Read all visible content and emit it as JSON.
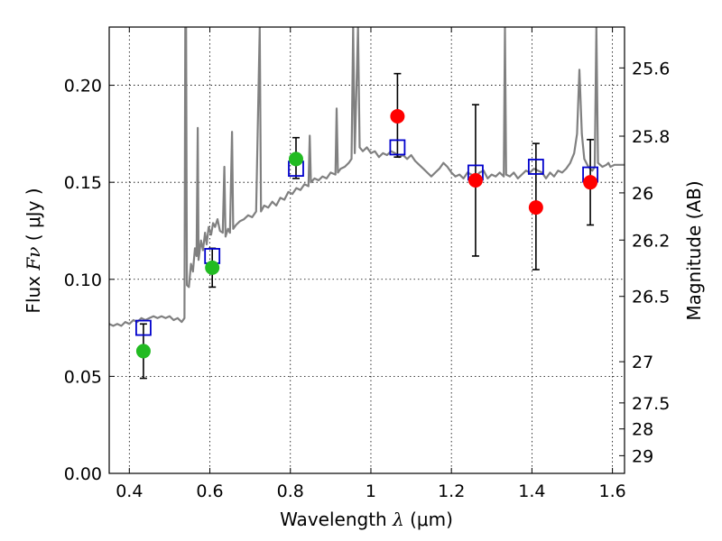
{
  "chart_data": {
    "type": "scatter",
    "xlabel_text": "Wavelength",
    "xlabel_symbol": "λ",
    "xlabel_unit": "(μm)",
    "ylabel_text": "Flux",
    "ylabel_symbol": "Fν",
    "ylabel_unit": "( μJy )",
    "y2label": "Magnitude (AB)",
    "xlim": [
      0.35,
      1.63
    ],
    "ylim": [
      0.0,
      0.23
    ],
    "grid": true,
    "x_ticks": [
      {
        "value": 0.4,
        "label": "0.4"
      },
      {
        "value": 0.6,
        "label": "0.6"
      },
      {
        "value": 0.8,
        "label": "0.8"
      },
      {
        "value": 1.0,
        "label": "1"
      },
      {
        "value": 1.2,
        "label": "1.2"
      },
      {
        "value": 1.4,
        "label": "1.4"
      },
      {
        "value": 1.6,
        "label": "1.6"
      }
    ],
    "y_ticks": [
      {
        "value": 0.0,
        "label": "0.00"
      },
      {
        "value": 0.05,
        "label": "0.05"
      },
      {
        "value": 0.1,
        "label": "0.10"
      },
      {
        "value": 0.15,
        "label": "0.15"
      },
      {
        "value": 0.2,
        "label": "0.20"
      }
    ],
    "y2_ticks": [
      {
        "label": "25.6"
      },
      {
        "label": "25.8"
      },
      {
        "label": "26"
      },
      {
        "label": "26.2"
      },
      {
        "label": "26.5"
      },
      {
        "label": "27"
      },
      {
        "label": "27.5"
      },
      {
        "label": "28"
      },
      {
        "label": "29"
      }
    ],
    "series": [
      {
        "marker": "circle",
        "color": "#22bb22",
        "points": [
          {
            "x": 0.435,
            "y": 0.063,
            "err": [
              0.049,
              0.077
            ]
          },
          {
            "x": 0.606,
            "y": 0.106,
            "err": [
              0.096,
              0.116
            ]
          },
          {
            "x": 0.814,
            "y": 0.162,
            "err": [
              0.152,
              0.173
            ]
          }
        ]
      },
      {
        "marker": "circle",
        "color": "#ff0000",
        "points": [
          {
            "x": 1.066,
            "y": 0.184,
            "err": [
              0.163,
              0.206
            ]
          },
          {
            "x": 1.26,
            "y": 0.151,
            "err": [
              0.112,
              0.19
            ]
          },
          {
            "x": 1.41,
            "y": 0.137,
            "err": [
              0.105,
              0.17
            ]
          },
          {
            "x": 1.545,
            "y": 0.15,
            "err": [
              0.128,
              0.172
            ]
          }
        ]
      },
      {
        "marker": "square-open",
        "color": "#0000cc",
        "points": [
          {
            "x": 0.435,
            "y": 0.075
          },
          {
            "x": 0.606,
            "y": 0.112
          },
          {
            "x": 0.814,
            "y": 0.157
          },
          {
            "x": 1.066,
            "y": 0.168
          },
          {
            "x": 1.26,
            "y": 0.155
          },
          {
            "x": 1.41,
            "y": 0.158
          },
          {
            "x": 1.545,
            "y": 0.154
          }
        ]
      },
      {
        "marker": "line",
        "color": "#808080",
        "points": [
          {
            "x": 0.35,
            "y": 0.077
          },
          {
            "x": 0.36,
            "y": 0.076
          },
          {
            "x": 0.37,
            "y": 0.077
          },
          {
            "x": 0.38,
            "y": 0.076
          },
          {
            "x": 0.39,
            "y": 0.078
          },
          {
            "x": 0.4,
            "y": 0.077
          },
          {
            "x": 0.41,
            "y": 0.079
          },
          {
            "x": 0.42,
            "y": 0.078
          },
          {
            "x": 0.43,
            "y": 0.08
          },
          {
            "x": 0.44,
            "y": 0.079
          },
          {
            "x": 0.45,
            "y": 0.08
          },
          {
            "x": 0.46,
            "y": 0.081
          },
          {
            "x": 0.47,
            "y": 0.08
          },
          {
            "x": 0.48,
            "y": 0.081
          },
          {
            "x": 0.49,
            "y": 0.08
          },
          {
            "x": 0.5,
            "y": 0.081
          },
          {
            "x": 0.51,
            "y": 0.079
          },
          {
            "x": 0.52,
            "y": 0.08
          },
          {
            "x": 0.53,
            "y": 0.078
          },
          {
            "x": 0.537,
            "y": 0.08
          },
          {
            "x": 0.539,
            "y": 0.23
          },
          {
            "x": 0.541,
            "y": 0.23
          },
          {
            "x": 0.543,
            "y": 0.097
          },
          {
            "x": 0.548,
            "y": 0.096
          },
          {
            "x": 0.553,
            "y": 0.108
          },
          {
            "x": 0.558,
            "y": 0.104
          },
          {
            "x": 0.563,
            "y": 0.116
          },
          {
            "x": 0.567,
            "y": 0.112
          },
          {
            "x": 0.57,
            "y": 0.178
          },
          {
            "x": 0.572,
            "y": 0.11
          },
          {
            "x": 0.578,
            "y": 0.12
          },
          {
            "x": 0.583,
            "y": 0.115
          },
          {
            "x": 0.588,
            "y": 0.124
          },
          {
            "x": 0.592,
            "y": 0.118
          },
          {
            "x": 0.597,
            "y": 0.127
          },
          {
            "x": 0.603,
            "y": 0.123
          },
          {
            "x": 0.608,
            "y": 0.129
          },
          {
            "x": 0.613,
            "y": 0.127
          },
          {
            "x": 0.619,
            "y": 0.131
          },
          {
            "x": 0.625,
            "y": 0.125
          },
          {
            "x": 0.632,
            "y": 0.124
          },
          {
            "x": 0.636,
            "y": 0.158
          },
          {
            "x": 0.639,
            "y": 0.122
          },
          {
            "x": 0.645,
            "y": 0.126
          },
          {
            "x": 0.65,
            "y": 0.124
          },
          {
            "x": 0.655,
            "y": 0.176
          },
          {
            "x": 0.658,
            "y": 0.126
          },
          {
            "x": 0.665,
            "y": 0.128
          },
          {
            "x": 0.675,
            "y": 0.13
          },
          {
            "x": 0.685,
            "y": 0.131
          },
          {
            "x": 0.695,
            "y": 0.133
          },
          {
            "x": 0.705,
            "y": 0.132
          },
          {
            "x": 0.715,
            "y": 0.135
          },
          {
            "x": 0.724,
            "y": 0.23
          },
          {
            "x": 0.727,
            "y": 0.135
          },
          {
            "x": 0.735,
            "y": 0.138
          },
          {
            "x": 0.745,
            "y": 0.137
          },
          {
            "x": 0.755,
            "y": 0.14
          },
          {
            "x": 0.765,
            "y": 0.138
          },
          {
            "x": 0.775,
            "y": 0.142
          },
          {
            "x": 0.785,
            "y": 0.141
          },
          {
            "x": 0.795,
            "y": 0.145
          },
          {
            "x": 0.805,
            "y": 0.144
          },
          {
            "x": 0.815,
            "y": 0.147
          },
          {
            "x": 0.825,
            "y": 0.146
          },
          {
            "x": 0.835,
            "y": 0.149
          },
          {
            "x": 0.845,
            "y": 0.148
          },
          {
            "x": 0.848,
            "y": 0.174
          },
          {
            "x": 0.851,
            "y": 0.15
          },
          {
            "x": 0.86,
            "y": 0.152
          },
          {
            "x": 0.87,
            "y": 0.151
          },
          {
            "x": 0.88,
            "y": 0.153
          },
          {
            "x": 0.89,
            "y": 0.152
          },
          {
            "x": 0.9,
            "y": 0.155
          },
          {
            "x": 0.912,
            "y": 0.154
          },
          {
            "x": 0.915,
            "y": 0.188
          },
          {
            "x": 0.918,
            "y": 0.155
          },
          {
            "x": 0.925,
            "y": 0.157
          },
          {
            "x": 0.935,
            "y": 0.158
          },
          {
            "x": 0.945,
            "y": 0.16
          },
          {
            "x": 0.952,
            "y": 0.162
          },
          {
            "x": 0.956,
            "y": 0.23
          },
          {
            "x": 0.96,
            "y": 0.165
          },
          {
            "x": 0.968,
            "y": 0.23
          },
          {
            "x": 0.972,
            "y": 0.168
          },
          {
            "x": 0.98,
            "y": 0.166
          },
          {
            "x": 0.99,
            "y": 0.168
          },
          {
            "x": 1.0,
            "y": 0.165
          },
          {
            "x": 1.01,
            "y": 0.166
          },
          {
            "x": 1.02,
            "y": 0.163
          },
          {
            "x": 1.03,
            "y": 0.165
          },
          {
            "x": 1.04,
            "y": 0.164
          },
          {
            "x": 1.05,
            "y": 0.166
          },
          {
            "x": 1.06,
            "y": 0.165
          },
          {
            "x": 1.07,
            "y": 0.163
          },
          {
            "x": 1.08,
            "y": 0.164
          },
          {
            "x": 1.09,
            "y": 0.162
          },
          {
            "x": 1.1,
            "y": 0.164
          },
          {
            "x": 1.11,
            "y": 0.161
          },
          {
            "x": 1.12,
            "y": 0.159
          },
          {
            "x": 1.13,
            "y": 0.157
          },
          {
            "x": 1.14,
            "y": 0.155
          },
          {
            "x": 1.15,
            "y": 0.153
          },
          {
            "x": 1.16,
            "y": 0.155
          },
          {
            "x": 1.17,
            "y": 0.157
          },
          {
            "x": 1.18,
            "y": 0.16
          },
          {
            "x": 1.19,
            "y": 0.158
          },
          {
            "x": 1.2,
            "y": 0.155
          },
          {
            "x": 1.21,
            "y": 0.153
          },
          {
            "x": 1.22,
            "y": 0.154
          },
          {
            "x": 1.23,
            "y": 0.152
          },
          {
            "x": 1.24,
            "y": 0.155
          },
          {
            "x": 1.25,
            "y": 0.154
          },
          {
            "x": 1.26,
            "y": 0.153
          },
          {
            "x": 1.27,
            "y": 0.155
          },
          {
            "x": 1.28,
            "y": 0.156
          },
          {
            "x": 1.29,
            "y": 0.152
          },
          {
            "x": 1.3,
            "y": 0.154
          },
          {
            "x": 1.31,
            "y": 0.153
          },
          {
            "x": 1.32,
            "y": 0.155
          },
          {
            "x": 1.33,
            "y": 0.153
          },
          {
            "x": 1.333,
            "y": 0.23
          },
          {
            "x": 1.336,
            "y": 0.154
          },
          {
            "x": 1.345,
            "y": 0.153
          },
          {
            "x": 1.355,
            "y": 0.155
          },
          {
            "x": 1.365,
            "y": 0.152
          },
          {
            "x": 1.375,
            "y": 0.154
          },
          {
            "x": 1.385,
            "y": 0.156
          },
          {
            "x": 1.395,
            "y": 0.155
          },
          {
            "x": 1.405,
            "y": 0.157
          },
          {
            "x": 1.415,
            "y": 0.156
          },
          {
            "x": 1.425,
            "y": 0.155
          },
          {
            "x": 1.435,
            "y": 0.152
          },
          {
            "x": 1.445,
            "y": 0.155
          },
          {
            "x": 1.455,
            "y": 0.153
          },
          {
            "x": 1.465,
            "y": 0.156
          },
          {
            "x": 1.475,
            "y": 0.155
          },
          {
            "x": 1.485,
            "y": 0.157
          },
          {
            "x": 1.495,
            "y": 0.16
          },
          {
            "x": 1.505,
            "y": 0.165
          },
          {
            "x": 1.512,
            "y": 0.175
          },
          {
            "x": 1.518,
            "y": 0.208
          },
          {
            "x": 1.524,
            "y": 0.175
          },
          {
            "x": 1.53,
            "y": 0.162
          },
          {
            "x": 1.54,
            "y": 0.158
          },
          {
            "x": 1.55,
            "y": 0.156
          },
          {
            "x": 1.556,
            "y": 0.158
          },
          {
            "x": 1.56,
            "y": 0.23
          },
          {
            "x": 1.564,
            "y": 0.16
          },
          {
            "x": 1.575,
            "y": 0.158
          },
          {
            "x": 1.585,
            "y": 0.159
          },
          {
            "x": 1.59,
            "y": 0.16
          },
          {
            "x": 1.595,
            "y": 0.158
          },
          {
            "x": 1.605,
            "y": 0.159
          },
          {
            "x": 1.615,
            "y": 0.159
          },
          {
            "x": 1.63,
            "y": 0.159
          }
        ]
      }
    ]
  }
}
